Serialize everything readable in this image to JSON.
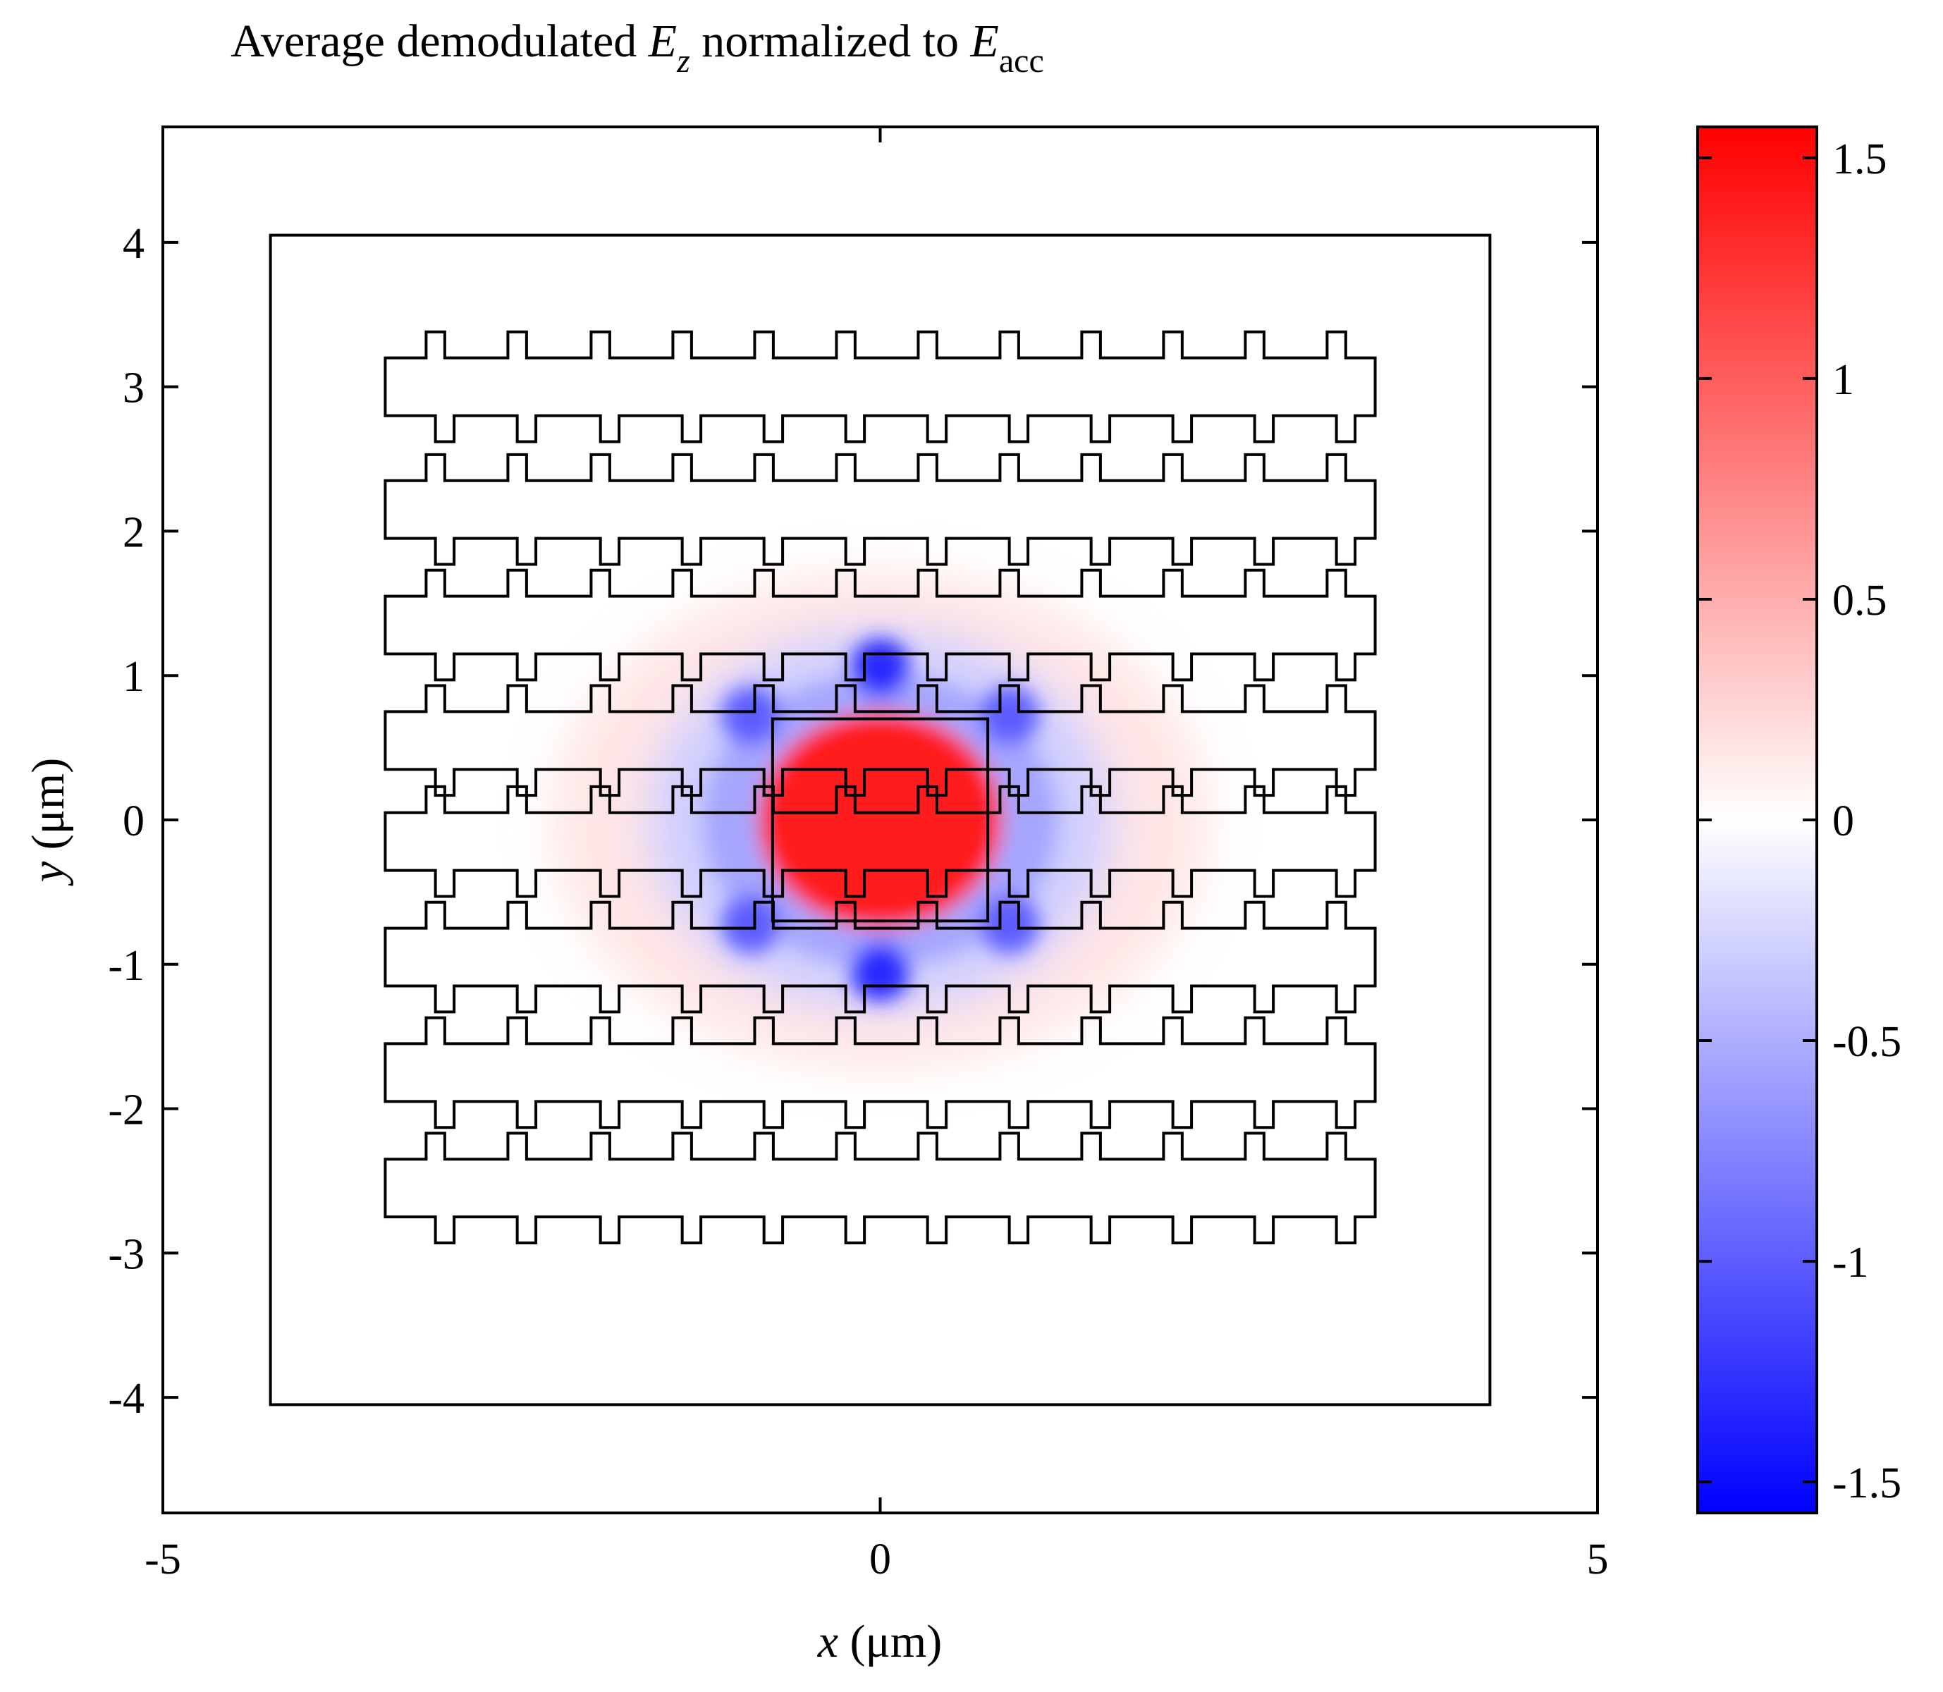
{
  "chart_data": {
    "type": "heatmap",
    "title": {
      "prefix": "Average demodulated ",
      "var1": "E",
      "var1_sub": "z",
      "middle": " normalized to ",
      "var2": "E",
      "var2_sub": "acc"
    },
    "xlabel": {
      "var": "x",
      "unit": " (μm)"
    },
    "ylabel": {
      "var": "y",
      "unit": " (μm)"
    },
    "xlim": [
      -5,
      5
    ],
    "ylim": [
      -4.8,
      4.8
    ],
    "xticks": [
      -5,
      0,
      5
    ],
    "xtick_labels": [
      "-5",
      "0",
      "5"
    ],
    "yticks": [
      4,
      3,
      2,
      1,
      0,
      -1,
      -2,
      -3,
      -4
    ],
    "ytick_labels": [
      "4",
      "3",
      "2",
      "1",
      "0",
      "-1",
      "-2",
      "-3",
      "-4"
    ],
    "colorbar": {
      "clim": [
        -1.57,
        1.57
      ],
      "ticks": [
        1.5,
        1,
        0.5,
        0,
        -0.5,
        -1,
        -1.5
      ],
      "tick_labels": [
        "1.5",
        "1",
        "0.5",
        "0",
        "-0.5",
        "-1",
        "-1.5"
      ],
      "colors": {
        "low": "#0000ff",
        "mid": "#ffffff",
        "high": "#ff0000"
      }
    },
    "outlines": {
      "outer_box": {
        "x": [
          -5,
          5
        ],
        "y": [
          -4.8,
          4.8
        ]
      },
      "inner_box": {
        "x": [
          -4.25,
          4.25
        ],
        "y": [
          -4.05,
          4.05
        ]
      },
      "grating_x_range": [
        -3.45,
        3.45
      ],
      "tooth_x_centers": [
        -3.1,
        -2.53,
        -1.95,
        -1.38,
        -0.81,
        -0.24,
        0.33,
        0.9,
        1.47,
        2.04,
        2.61,
        3.18
      ],
      "tooth_width": 0.13,
      "tooth_depth": 0.18,
      "row_y_centers": [
        3.0,
        2.15,
        1.35,
        0.55,
        -0.15,
        -0.95,
        -1.75,
        -2.55
      ],
      "row_half_height": 0.2,
      "defect_cavity": {
        "x": [
          -0.75,
          0.75
        ],
        "y": [
          -0.7,
          0.7
        ]
      }
    },
    "field_features": {
      "central_lobe": {
        "x": 0,
        "y": 0,
        "value": 1.4,
        "radius_x": 0.85,
        "radius_y": 0.75
      },
      "negative_spots": [
        {
          "x": 0,
          "y": 1.05,
          "value": -1.3
        },
        {
          "x": 0,
          "y": -1.05,
          "value": -1.3
        },
        {
          "x": -0.9,
          "y": 0.72,
          "value": -1.0
        },
        {
          "x": 0.9,
          "y": 0.72,
          "value": -1.0
        },
        {
          "x": -0.9,
          "y": -0.72,
          "value": -1.0
        },
        {
          "x": 0.9,
          "y": -0.72,
          "value": -1.0
        }
      ],
      "ring_value": -0.55,
      "outer_ring_value": 0.25
    }
  }
}
